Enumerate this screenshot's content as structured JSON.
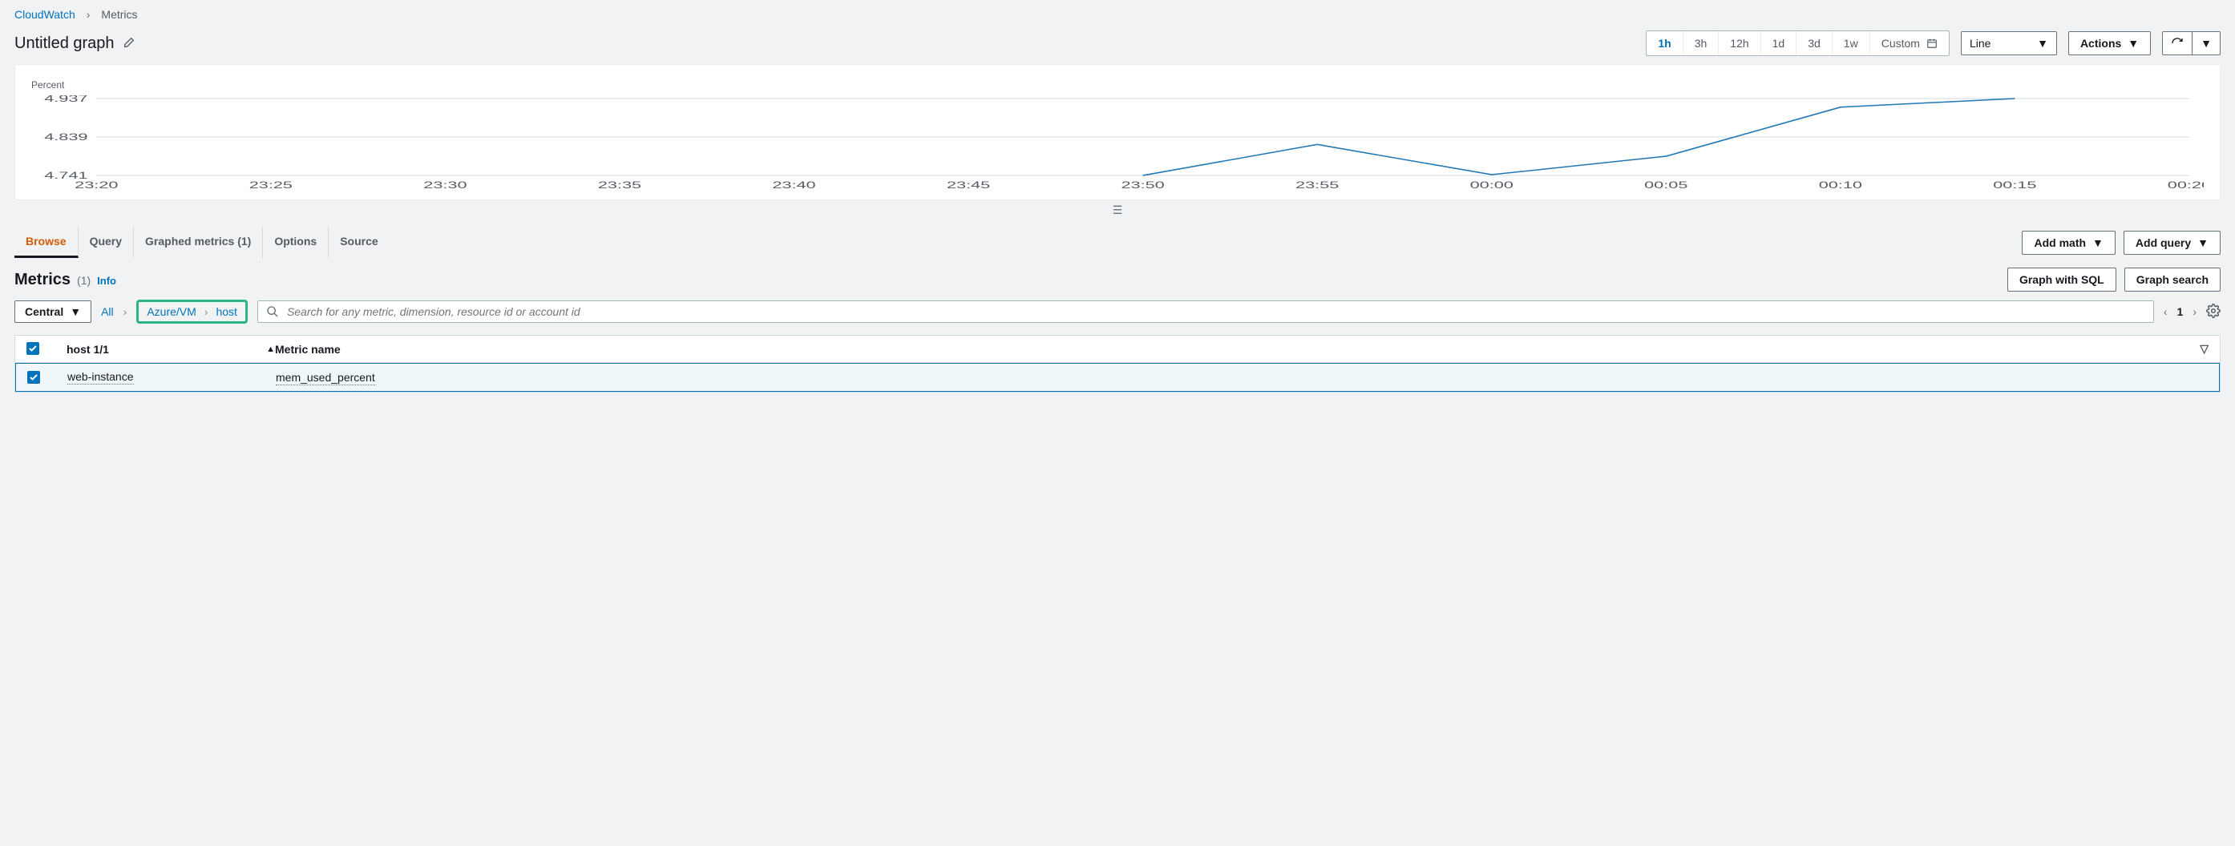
{
  "breadcrumb": {
    "root": "CloudWatch",
    "current": "Metrics"
  },
  "header": {
    "title": "Untitled graph",
    "ranges": [
      "1h",
      "3h",
      "12h",
      "1d",
      "3d",
      "1w"
    ],
    "range_active": "1h",
    "custom_label": "Custom",
    "chart_type": "Line",
    "actions_label": "Actions"
  },
  "chart": {
    "y_axis_label": "Percent",
    "y_ticks": [
      4.937,
      4.839,
      4.741
    ],
    "ylim": [
      4.741,
      4.937
    ],
    "x_ticks": [
      "23:20",
      "23:25",
      "23:30",
      "23:35",
      "23:40",
      "23:45",
      "23:50",
      "23:55",
      "00:00",
      "00:05",
      "00:10",
      "00:15",
      "00:20"
    ],
    "series": [
      {
        "color": "#1f77b4",
        "points": [
          {
            "x": "23:50",
            "y": 4.741
          },
          {
            "x": "23:55",
            "y": 4.82
          },
          {
            "x": "00:00",
            "y": 4.743
          },
          {
            "x": "00:05",
            "y": 4.79
          },
          {
            "x": "00:10",
            "y": 4.915
          },
          {
            "x": "00:15",
            "y": 4.937
          }
        ]
      }
    ],
    "grid_color": "#d5dbdb",
    "background": "#ffffff"
  },
  "tabs": {
    "items": [
      "Browse",
      "Query",
      "Graphed metrics (1)",
      "Options",
      "Source"
    ],
    "active": "Browse",
    "add_math": "Add math",
    "add_query": "Add query"
  },
  "metrics_section": {
    "title": "Metrics",
    "count": "(1)",
    "info": "Info",
    "graph_sql": "Graph with SQL",
    "graph_search": "Graph search"
  },
  "filters": {
    "region": "Central",
    "all_label": "All",
    "path": [
      "Azure/VM",
      "host"
    ],
    "search_placeholder": "Search for any metric, dimension, resource id or account id",
    "page": "1"
  },
  "table": {
    "col_host": "host 1/1",
    "col_metric": "Metric name",
    "rows": [
      {
        "host": "web-instance",
        "metric": "mem_used_percent",
        "checked": true
      }
    ]
  }
}
